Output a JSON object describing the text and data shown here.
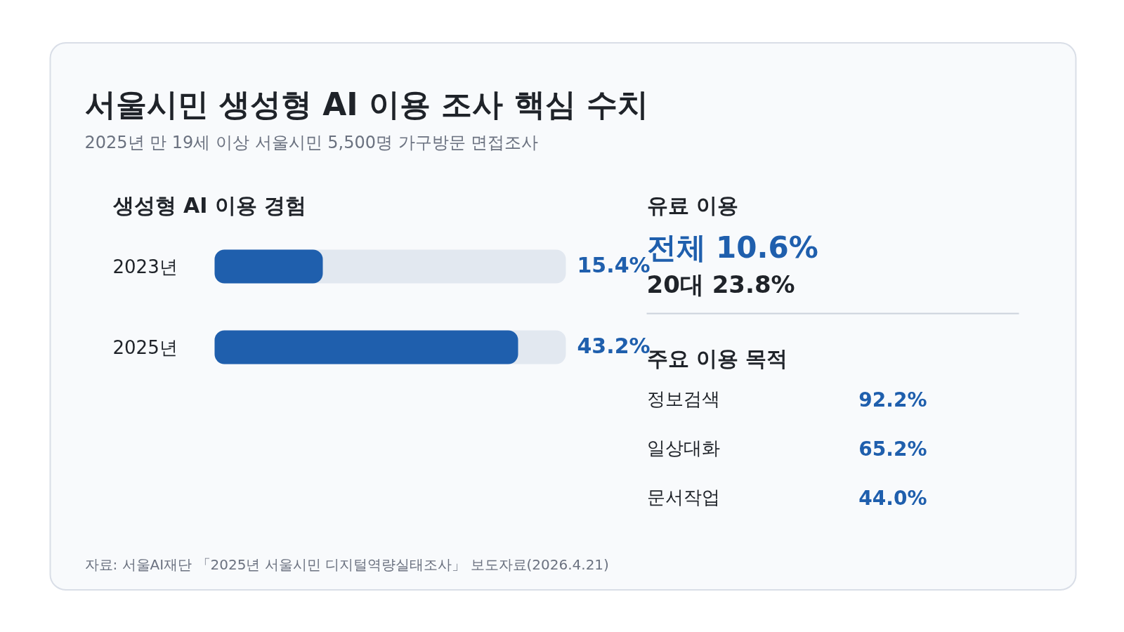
{
  "chart_data": [
    {
      "type": "other",
      "title": "서울시민 생성형 AI 이용 조사 핵심 수치",
      "subtitle": "2025년 만 19세 이상 서울시민 5,500명 가구방문 면접조사",
      "annotations": [
        "자료: 서울AI재단 「2025년 서울시민 디지털역량실태조사」 보도자료(2026.4.21)"
      ]
    },
    {
      "type": "bar",
      "orientation": "horizontal",
      "title": "생성형 AI 이용 경험",
      "categories": [
        "2023년",
        "2025년"
      ],
      "values": [
        15.4,
        43.2
      ],
      "value_labels": [
        "15.4%",
        "43.2%"
      ],
      "color": "#1f5fad",
      "xlim": [
        0,
        50
      ]
    },
    {
      "type": "other",
      "title": "유료 이용",
      "annotations": [
        "전체 10.6%",
        "20대 23.8%"
      ]
    },
    {
      "type": "other",
      "title": "주요 이용 목적",
      "categories": [
        "정보검색",
        "일상대화",
        "문서작업"
      ],
      "values": [
        92.2,
        65.2,
        44.0
      ],
      "value_labels": [
        "92.2%",
        "65.2%",
        "44.0%"
      ]
    }
  ]
}
